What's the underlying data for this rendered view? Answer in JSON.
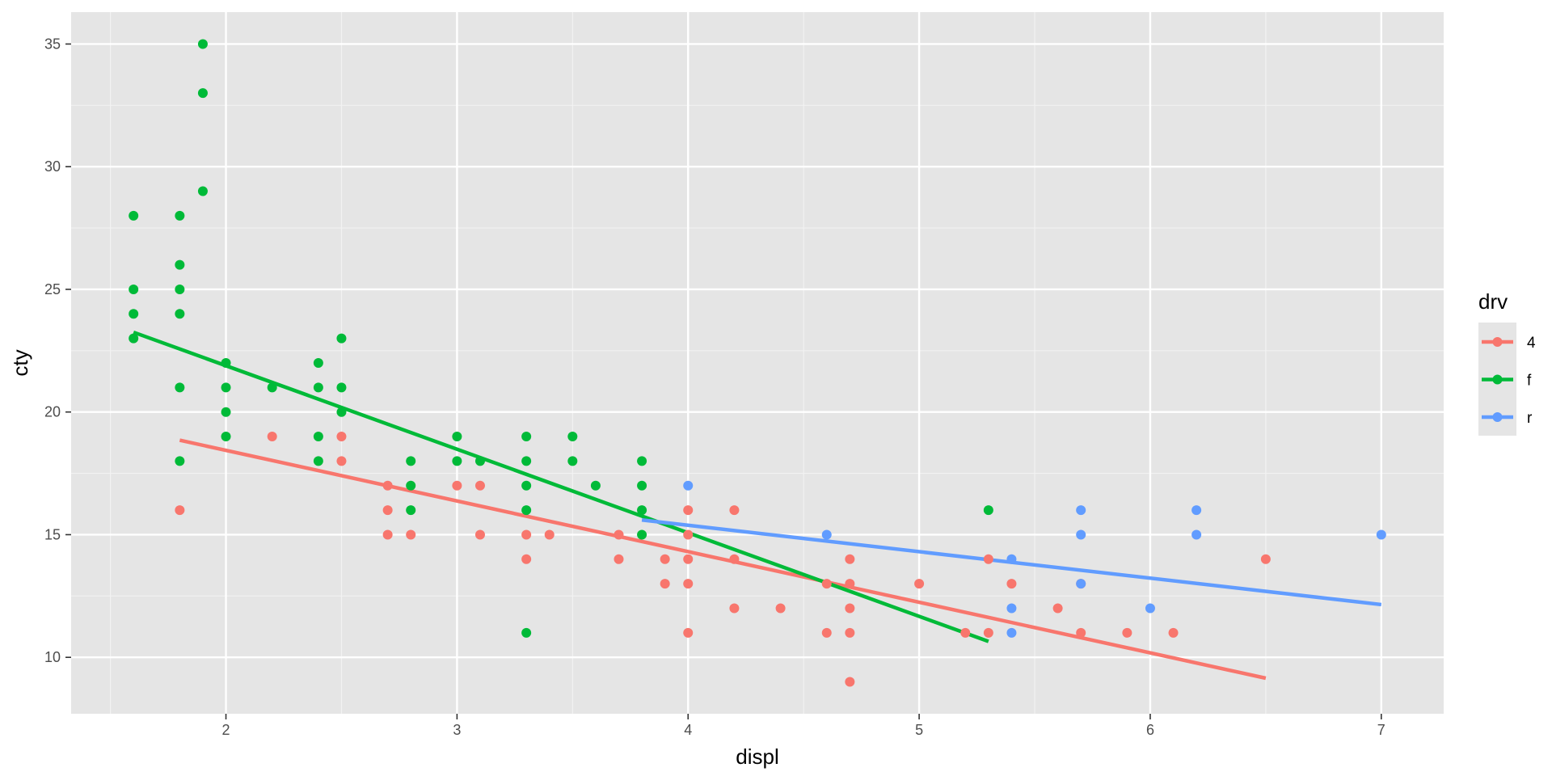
{
  "chart_data": {
    "type": "scatter",
    "title": "",
    "xlabel": "displ",
    "ylabel": "cty",
    "xlim": [
      1.33,
      7.27
    ],
    "ylim": [
      7.7,
      36.3
    ],
    "x_ticks": [
      2,
      3,
      4,
      5,
      6,
      7
    ],
    "y_ticks": [
      10,
      15,
      20,
      25,
      30,
      35
    ],
    "grid": true,
    "background": "#E5E5E5",
    "legend": {
      "title": "drv",
      "position": "right"
    },
    "series": [
      {
        "name": "4",
        "color": "#F8766D",
        "points": [
          [
            1.8,
            16
          ],
          [
            2.2,
            19
          ],
          [
            2.5,
            19
          ],
          [
            2.5,
            18
          ],
          [
            2.7,
            17
          ],
          [
            2.7,
            16
          ],
          [
            2.7,
            15
          ],
          [
            2.8,
            15
          ],
          [
            3.0,
            17
          ],
          [
            3.1,
            17
          ],
          [
            3.1,
            15
          ],
          [
            3.3,
            15
          ],
          [
            3.3,
            14
          ],
          [
            3.4,
            15
          ],
          [
            3.7,
            15
          ],
          [
            3.7,
            14
          ],
          [
            3.9,
            14
          ],
          [
            3.9,
            13
          ],
          [
            4.0,
            16
          ],
          [
            4.0,
            15
          ],
          [
            4.0,
            14
          ],
          [
            4.0,
            13
          ],
          [
            4.0,
            11
          ],
          [
            4.2,
            16
          ],
          [
            4.2,
            14
          ],
          [
            4.2,
            12
          ],
          [
            4.4,
            12
          ],
          [
            4.6,
            13
          ],
          [
            4.6,
            11
          ],
          [
            4.7,
            14
          ],
          [
            4.7,
            13
          ],
          [
            4.7,
            12
          ],
          [
            4.7,
            11
          ],
          [
            4.7,
            9
          ],
          [
            5.0,
            13
          ],
          [
            5.2,
            11
          ],
          [
            5.3,
            14
          ],
          [
            5.3,
            11
          ],
          [
            5.4,
            13
          ],
          [
            5.6,
            12
          ],
          [
            5.7,
            13
          ],
          [
            5.7,
            11
          ],
          [
            5.9,
            11
          ],
          [
            6.1,
            11
          ],
          [
            6.5,
            14
          ]
        ],
        "trend": [
          [
            1.8,
            18.85
          ],
          [
            6.5,
            9.15
          ]
        ]
      },
      {
        "name": "f",
        "color": "#00BA38",
        "points": [
          [
            1.6,
            28
          ],
          [
            1.6,
            25
          ],
          [
            1.6,
            24
          ],
          [
            1.6,
            23
          ],
          [
            1.8,
            28
          ],
          [
            1.8,
            26
          ],
          [
            1.8,
            25
          ],
          [
            1.8,
            24
          ],
          [
            1.8,
            21
          ],
          [
            1.8,
            18
          ],
          [
            1.9,
            35
          ],
          [
            1.9,
            33
          ],
          [
            1.9,
            29
          ],
          [
            2.0,
            22
          ],
          [
            2.0,
            21
          ],
          [
            2.0,
            20
          ],
          [
            2.0,
            19
          ],
          [
            2.2,
            21
          ],
          [
            2.4,
            22
          ],
          [
            2.4,
            21
          ],
          [
            2.4,
            19
          ],
          [
            2.4,
            18
          ],
          [
            2.5,
            23
          ],
          [
            2.5,
            21
          ],
          [
            2.5,
            20
          ],
          [
            2.8,
            18
          ],
          [
            2.8,
            17
          ],
          [
            2.8,
            16
          ],
          [
            3.0,
            19
          ],
          [
            3.0,
            18
          ],
          [
            3.1,
            18
          ],
          [
            3.3,
            19
          ],
          [
            3.3,
            18
          ],
          [
            3.3,
            17
          ],
          [
            3.3,
            16
          ],
          [
            3.3,
            11
          ],
          [
            3.5,
            19
          ],
          [
            3.5,
            18
          ],
          [
            3.6,
            17
          ],
          [
            3.8,
            18
          ],
          [
            3.8,
            17
          ],
          [
            3.8,
            16
          ],
          [
            3.8,
            15
          ],
          [
            5.3,
            16
          ]
        ],
        "trend": [
          [
            1.6,
            23.25
          ],
          [
            5.3,
            10.65
          ]
        ]
      },
      {
        "name": "r",
        "color": "#619CFF",
        "points": [
          [
            4.0,
            17
          ],
          [
            4.6,
            15
          ],
          [
            5.4,
            14
          ],
          [
            5.4,
            12
          ],
          [
            5.4,
            11
          ],
          [
            5.7,
            16
          ],
          [
            5.7,
            15
          ],
          [
            5.7,
            13
          ],
          [
            6.0,
            12
          ],
          [
            6.2,
            16
          ],
          [
            6.2,
            15
          ],
          [
            7.0,
            15
          ]
        ],
        "trend": [
          [
            3.8,
            15.6
          ],
          [
            7.0,
            12.15
          ]
        ]
      }
    ]
  }
}
